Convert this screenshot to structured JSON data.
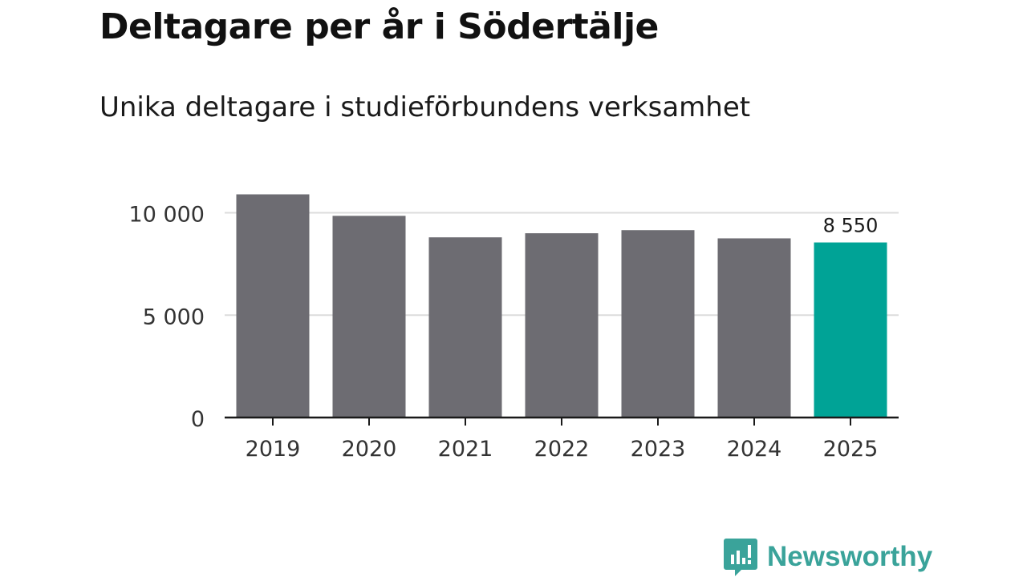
{
  "title": "Deltagare per år i Södertälje",
  "subtitle": "Unika deltagare i studieförbundens verksamhet",
  "colors": {
    "bar": "#6d6c72",
    "highlight": "#00a396",
    "grid": "#dcdcdc",
    "axis": "#1a1a1a",
    "brand": "#3aa39a"
  },
  "chart_data": {
    "type": "bar",
    "categories": [
      "2019",
      "2020",
      "2021",
      "2022",
      "2023",
      "2024",
      "2025"
    ],
    "values": [
      10900,
      9850,
      8800,
      9000,
      9150,
      8750,
      8550
    ],
    "highlight_index": 6,
    "data_labels": [
      {
        "index": 6,
        "text": "8 550"
      }
    ],
    "ylim": [
      0,
      12000
    ],
    "yticks": [
      {
        "value": 0,
        "label": "0"
      },
      {
        "value": 5000,
        "label": "5 000"
      },
      {
        "value": 10000,
        "label": "10 000"
      }
    ],
    "title": "Deltagare per år i Södertälje",
    "xlabel": "",
    "ylabel": "",
    "grid": true
  },
  "brand": {
    "name": "Newsworthy",
    "icon": "newsworthy-logo-icon"
  }
}
